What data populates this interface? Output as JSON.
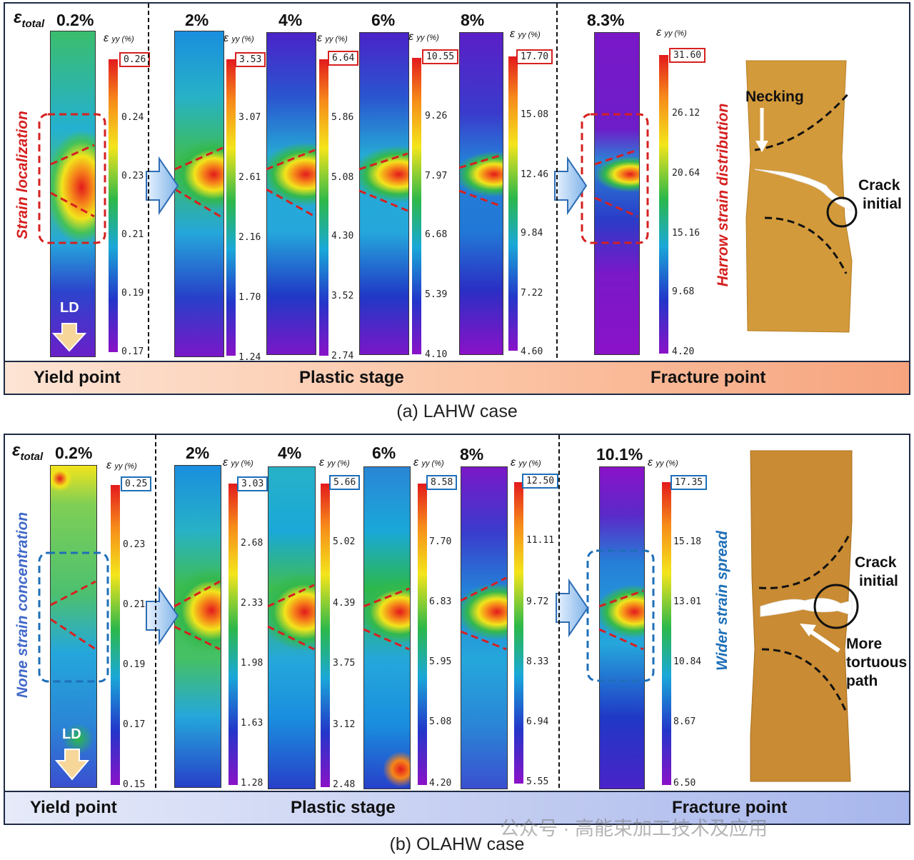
{
  "panel_a": {
    "epsilon_symbol": "ε",
    "epsilon_sub": "total",
    "stage_pcts": [
      "0.2%",
      "2%",
      "4%",
      "6%",
      "8%",
      "8.3%"
    ],
    "colorbar_label": {
      "symbol": "ε",
      "sub": "yy (%)"
    },
    "colorbars": [
      {
        "max": "0.26",
        "ticks": [
          "0.24",
          "0.23",
          "0.21",
          "0.19",
          "0.17"
        ]
      },
      {
        "max": "3.53",
        "ticks": [
          "3.07",
          "2.61",
          "2.16",
          "1.70",
          "1.24"
        ]
      },
      {
        "max": "6.64",
        "ticks": [
          "5.86",
          "5.08",
          "4.30",
          "3.52",
          "2.74"
        ]
      },
      {
        "max": "10.55",
        "ticks": [
          "9.26",
          "7.97",
          "6.68",
          "5.39",
          "4.10"
        ]
      },
      {
        "max": "17.70",
        "ticks": [
          "15.08",
          "12.46",
          "9.84",
          "7.22",
          "4.60"
        ]
      },
      {
        "max": "31.60",
        "ticks": [
          "26.12",
          "20.64",
          "15.16",
          "9.68",
          "4.20"
        ]
      }
    ],
    "side_label_left": "Strain localization",
    "side_label_right": "Harrow strain distribution",
    "ld_label": "LD",
    "photo_labels": {
      "necking": "Necking",
      "crack_line1": "Crack",
      "crack_line2": "initial"
    },
    "stages": {
      "yield": "Yield point",
      "plastic": "Plastic stage",
      "fracture": "Fracture point"
    },
    "caption": "(a) LAHW case"
  },
  "panel_b": {
    "epsilon_symbol": "ε",
    "epsilon_sub": "total",
    "stage_pcts": [
      "0.2%",
      "2%",
      "4%",
      "6%",
      "8%",
      "10.1%"
    ],
    "colorbar_label": {
      "symbol": "ε",
      "sub": "yy (%)"
    },
    "colorbars": [
      {
        "max": "0.25",
        "ticks": [
          "0.23",
          "0.21",
          "0.19",
          "0.17",
          "0.15"
        ]
      },
      {
        "max": "3.03",
        "ticks": [
          "2.68",
          "2.33",
          "1.98",
          "1.63",
          "1.28"
        ]
      },
      {
        "max": "5.66",
        "ticks": [
          "5.02",
          "4.39",
          "3.75",
          "3.12",
          "2.48"
        ]
      },
      {
        "max": "8.58",
        "ticks": [
          "7.70",
          "6.83",
          "5.95",
          "5.08",
          "4.20"
        ]
      },
      {
        "max": "12.50",
        "ticks": [
          "11.11",
          "9.72",
          "8.33",
          "6.94",
          "5.55"
        ]
      },
      {
        "max": "17.35",
        "ticks": [
          "15.18",
          "13.01",
          "10.84",
          "8.67",
          "6.50"
        ]
      }
    ],
    "side_label_left": "None strain concentration",
    "side_label_right": "Wider strain spread",
    "ld_label": "LD",
    "photo_labels": {
      "crack_line1": "Crack",
      "crack_line2": "initial",
      "path_line1": "More",
      "path_line2": "tortuous",
      "path_line3": "path"
    },
    "stages": {
      "yield": "Yield point",
      "plastic": "Plastic stage",
      "fracture": "Fracture point"
    },
    "caption": "(b) OLAHW case"
  },
  "watermark": "公众号 · 高能束加工技术及应用",
  "colors": {
    "red_accent": "#d62020",
    "blue_accent": "#1d6fb8",
    "border": "#1f2a44"
  }
}
